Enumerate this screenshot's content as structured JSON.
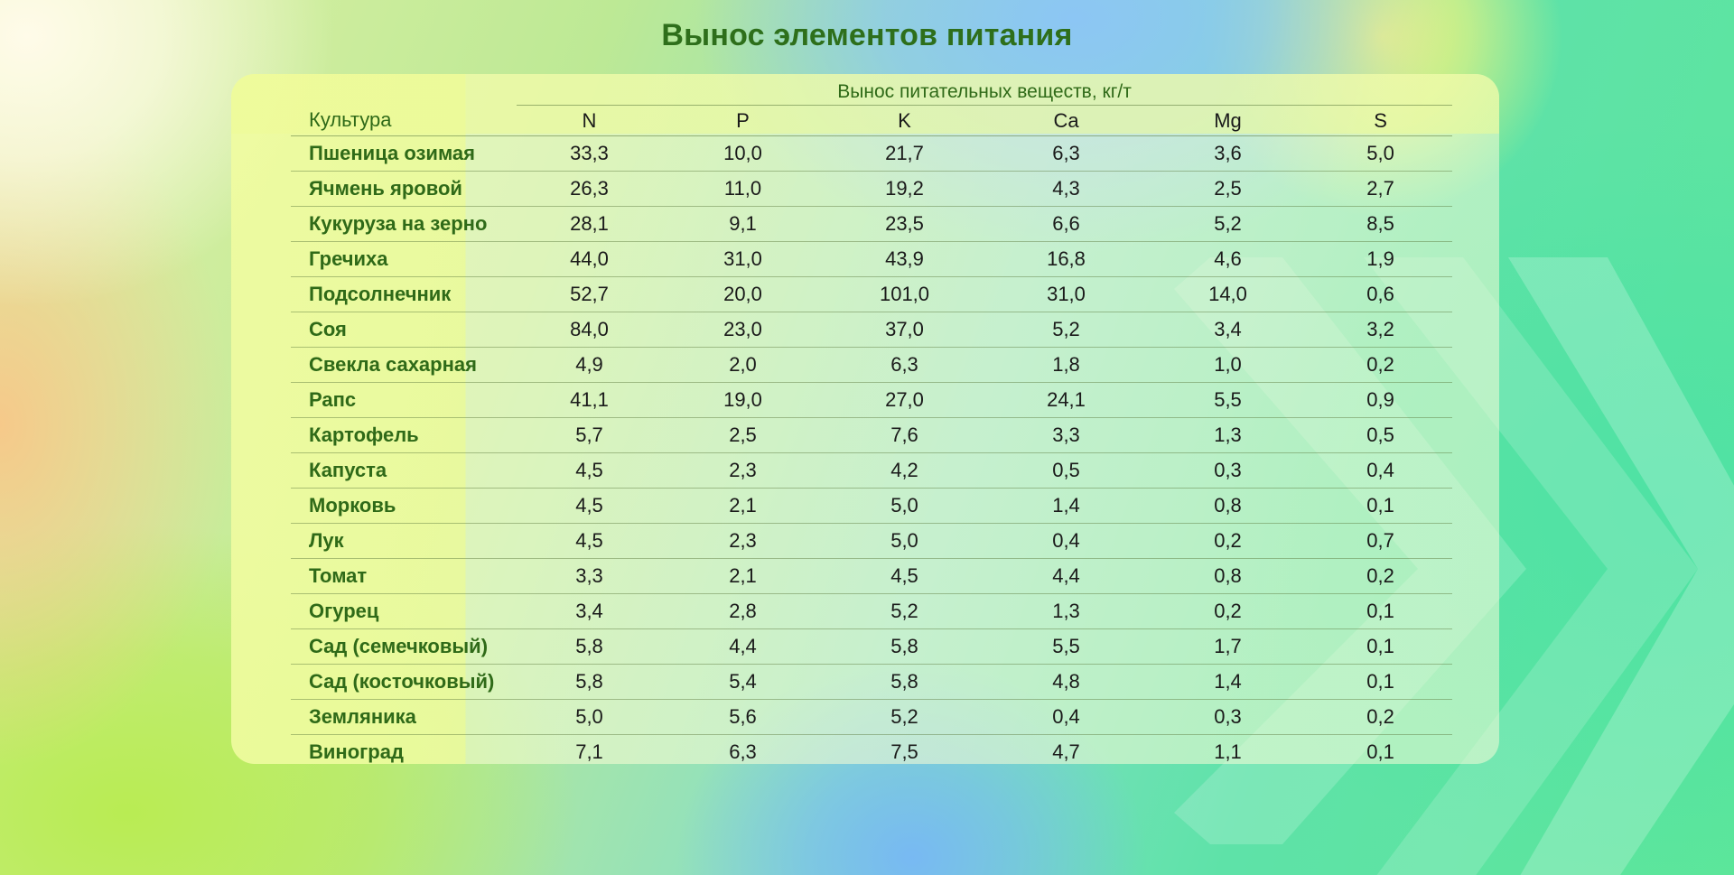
{
  "title": "Вынос элементов питания",
  "table": {
    "crop_header": "Культура",
    "group_header": "Вынос питательных веществ, кг/т",
    "columns": [
      "N",
      "P",
      "K",
      "Ca",
      "Mg",
      "S"
    ],
    "rows": [
      {
        "crop": "Пшеница озимая",
        "values": [
          "33,3",
          "10,0",
          "21,7",
          "6,3",
          "3,6",
          "5,0"
        ]
      },
      {
        "crop": "Ячмень яровой",
        "values": [
          "26,3",
          "11,0",
          "19,2",
          "4,3",
          "2,5",
          "2,7"
        ]
      },
      {
        "crop": "Кукуруза на зерно",
        "values": [
          "28,1",
          "9,1",
          "23,5",
          "6,6",
          "5,2",
          "8,5"
        ]
      },
      {
        "crop": "Гречиха",
        "values": [
          "44,0",
          "31,0",
          "43,9",
          "16,8",
          "4,6",
          "1,9"
        ]
      },
      {
        "crop": "Подсолнечник",
        "values": [
          "52,7",
          "20,0",
          "101,0",
          "31,0",
          "14,0",
          "0,6"
        ]
      },
      {
        "crop": "Соя",
        "values": [
          "84,0",
          "23,0",
          "37,0",
          "5,2",
          "3,4",
          "3,2"
        ]
      },
      {
        "crop": "Свекла сахарная",
        "values": [
          "4,9",
          "2,0",
          "6,3",
          "1,8",
          "1,0",
          "0,2"
        ]
      },
      {
        "crop": "Рапс",
        "values": [
          "41,1",
          "19,0",
          "27,0",
          "24,1",
          "5,5",
          "0,9"
        ]
      },
      {
        "crop": "Картофель",
        "values": [
          "5,7",
          "2,5",
          "7,6",
          "3,3",
          "1,3",
          "0,5"
        ]
      },
      {
        "crop": "Капуста",
        "values": [
          "4,5",
          "2,3",
          "4,2",
          "0,5",
          "0,3",
          "0,4"
        ]
      },
      {
        "crop": "Морковь",
        "values": [
          "4,5",
          "2,1",
          "5,0",
          "1,4",
          "0,8",
          "0,1"
        ]
      },
      {
        "crop": "Лук",
        "values": [
          "4,5",
          "2,3",
          "5,0",
          "0,4",
          "0,2",
          "0,7"
        ]
      },
      {
        "crop": "Томат",
        "values": [
          "3,3",
          "2,1",
          "4,5",
          "4,4",
          "0,8",
          "0,2"
        ]
      },
      {
        "crop": "Огурец",
        "values": [
          "3,4",
          "2,8",
          "5,2",
          "1,3",
          "0,2",
          "0,1"
        ]
      },
      {
        "crop": "Сад (семечковый)",
        "values": [
          "5,8",
          "4,4",
          "5,8",
          "5,5",
          "1,7",
          "0,1"
        ]
      },
      {
        "crop": "Сад (косточковый)",
        "values": [
          "5,8",
          "5,4",
          "5,8",
          "4,8",
          "1,4",
          "0,1"
        ]
      },
      {
        "crop": "Земляника",
        "values": [
          "5,0",
          "5,6",
          "5,2",
          "0,4",
          "0,3",
          "0,2"
        ]
      },
      {
        "crop": "Виноград",
        "values": [
          "7,1",
          "6,3",
          "7,5",
          "4,7",
          "1,1",
          "0,1"
        ]
      }
    ]
  },
  "colors": {
    "title": "#2e6f1b",
    "crop_text": "#2f6a18",
    "value_text": "#1a1a1a"
  }
}
